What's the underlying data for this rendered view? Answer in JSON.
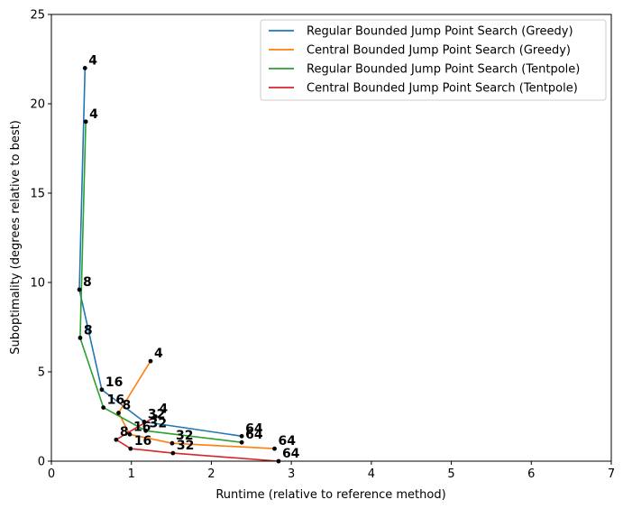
{
  "chart_data": {
    "type": "line",
    "title": "",
    "xlabel": "Runtime (relative to reference method)",
    "ylabel": "Suboptimality (degrees relative to best)",
    "xlim": [
      0,
      7
    ],
    "ylim": [
      0,
      25
    ],
    "xticks": [
      "0",
      "1",
      "2",
      "3",
      "4",
      "5",
      "6",
      "7"
    ],
    "yticks": [
      "0",
      "5",
      "10",
      "15",
      "20",
      "25"
    ],
    "grid": false,
    "legend_position": "top-right",
    "series": [
      {
        "name": "Regular Bounded Jump Point Search (Greedy)",
        "color": "#1f77b4",
        "points": [
          {
            "x": 0.42,
            "y": 22.0,
            "label": "4"
          },
          {
            "x": 0.35,
            "y": 9.6,
            "label": "8"
          },
          {
            "x": 0.63,
            "y": 4.0,
            "label": "16"
          },
          {
            "x": 1.16,
            "y": 2.2,
            "label": "32"
          },
          {
            "x": 2.38,
            "y": 1.4,
            "label": "64"
          }
        ]
      },
      {
        "name": "Central Bounded Jump Point Search (Greedy)",
        "color": "#ff7f0e",
        "points": [
          {
            "x": 1.24,
            "y": 5.6,
            "label": "4"
          },
          {
            "x": 0.84,
            "y": 2.7,
            "label": "8"
          },
          {
            "x": 0.98,
            "y": 1.5,
            "label": "16"
          },
          {
            "x": 1.51,
            "y": 1.0,
            "label": "32"
          },
          {
            "x": 2.79,
            "y": 0.7,
            "label": "64"
          }
        ]
      },
      {
        "name": "Regular Bounded Jump Point Search (Tentpole)",
        "color": "#2ca02c",
        "points": [
          {
            "x": 0.43,
            "y": 19.0,
            "label": "4"
          },
          {
            "x": 0.36,
            "y": 6.9,
            "label": "8"
          },
          {
            "x": 0.65,
            "y": 3.0,
            "label": "16"
          },
          {
            "x": 1.18,
            "y": 1.7,
            "label": "32"
          },
          {
            "x": 2.38,
            "y": 1.05,
            "label": "64"
          }
        ]
      },
      {
        "name": "Central Bounded Jump Point Search (Tentpole)",
        "color": "#d62728",
        "points": [
          {
            "x": 1.3,
            "y": 2.5,
            "label": "4"
          },
          {
            "x": 0.81,
            "y": 1.2,
            "label": "8"
          },
          {
            "x": 0.99,
            "y": 0.7,
            "label": "16"
          },
          {
            "x": 1.52,
            "y": 0.45,
            "label": "32"
          },
          {
            "x": 2.84,
            "y": 0.0,
            "label": "64"
          }
        ]
      }
    ]
  }
}
